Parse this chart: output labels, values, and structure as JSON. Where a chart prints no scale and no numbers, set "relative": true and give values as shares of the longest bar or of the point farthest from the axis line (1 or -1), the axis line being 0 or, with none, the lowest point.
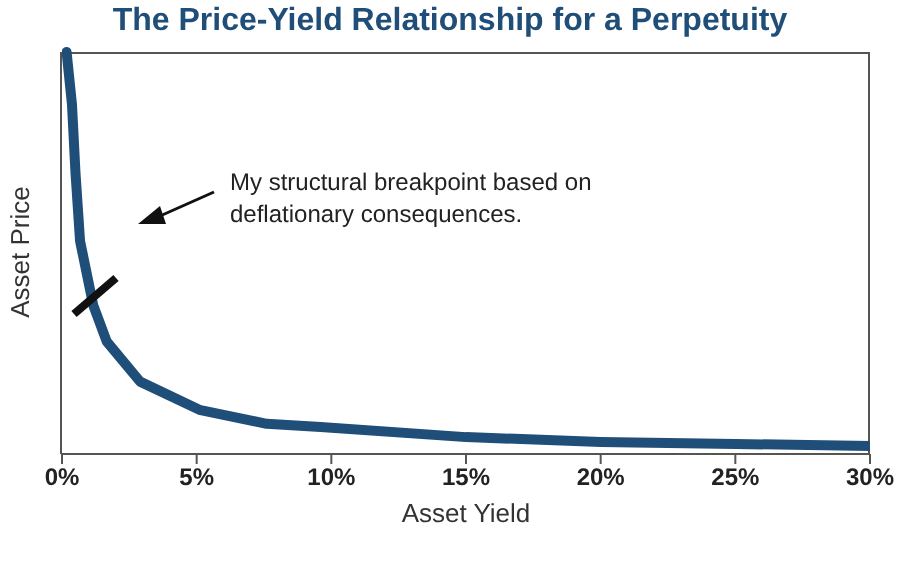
{
  "chart_data": {
    "type": "line",
    "title": "The Price-Yield Relationship for a Perpetuity",
    "xlabel": "Asset Yield",
    "ylabel": "Asset Price",
    "relative": true,
    "annotations": [
      "My structural breakpoint based on deflationary consequences."
    ],
    "x": [
      0.17,
      0.37,
      0.5,
      0.67,
      1.16,
      1.66,
      2.9,
      5.1,
      7.6,
      9.6,
      15,
      20,
      25,
      30
    ],
    "series": [
      {
        "color": "#1f4e79",
        "values": [
          1,
          0.87,
          0.7,
          0.53,
          0.37,
          0.28,
          0.18,
          0.11,
          0.075,
          0.067,
          0.042,
          0.03,
          0.025,
          0.02
        ]
      }
    ],
    "xlim": [
      0,
      30
    ],
    "xticks": [
      {
        "value": 0,
        "label": "0%"
      },
      {
        "value": 5,
        "label": "5%"
      },
      {
        "value": 10,
        "label": "10%"
      },
      {
        "value": 15,
        "label": "15%"
      },
      {
        "value": 20,
        "label": "20%"
      },
      {
        "value": 25,
        "label": "25%"
      },
      {
        "value": 30,
        "label": "30%"
      }
    ],
    "grid": false,
    "legend": false,
    "marker": "none",
    "line_style": "solid"
  }
}
